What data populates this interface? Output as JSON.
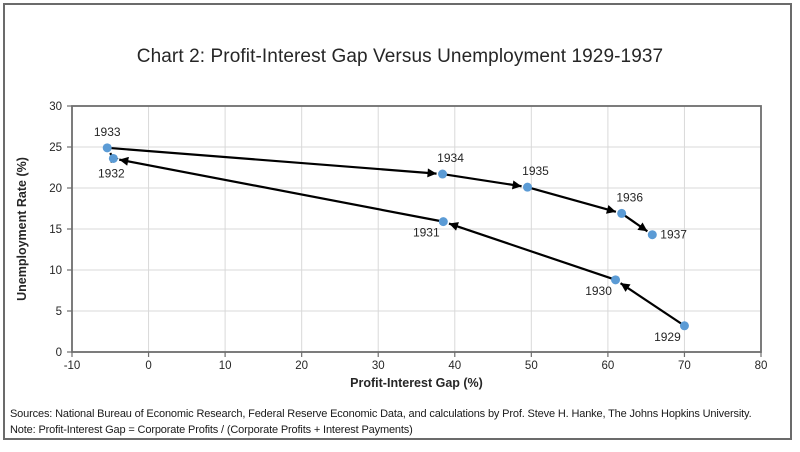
{
  "chart_data": {
    "type": "scatter",
    "title": "Chart 2: Profit-Interest Gap Versus Unemployment 1929-1937",
    "xlabel": "Profit-Interest Gap (%)",
    "ylabel": "Unemployment Rate (%)",
    "xlim": [
      -10,
      80
    ],
    "ylim": [
      0,
      30
    ],
    "x_ticks": [
      -10,
      0,
      10,
      20,
      30,
      40,
      50,
      60,
      70,
      80
    ],
    "y_ticks": [
      0,
      5,
      10,
      15,
      20,
      25,
      30
    ],
    "grid": true,
    "legend": "none",
    "line_connects_points_chronologically_with_arrowheads": true,
    "points": [
      {
        "year": "1929",
        "x": 70,
        "y": 3.2,
        "label_pos": "below-left"
      },
      {
        "year": "1930",
        "x": 61,
        "y": 8.8,
        "label_pos": "below-left"
      },
      {
        "year": "1931",
        "x": 38.5,
        "y": 15.9,
        "label_pos": "below-left"
      },
      {
        "year": "1932",
        "x": -4.6,
        "y": 23.6,
        "label_pos": "below"
      },
      {
        "year": "1933",
        "x": -5.4,
        "y": 24.9,
        "label_pos": "above"
      },
      {
        "year": "1934",
        "x": 38.4,
        "y": 21.7,
        "label_pos": "above-right"
      },
      {
        "year": "1935",
        "x": 49.5,
        "y": 20.1,
        "label_pos": "above-right"
      },
      {
        "year": "1936",
        "x": 61.8,
        "y": 16.9,
        "label_pos": "above-right"
      },
      {
        "year": "1937",
        "x": 65.8,
        "y": 14.3,
        "label_pos": "right"
      }
    ],
    "colors": {
      "point_fill": "#5B9BD5",
      "line": "#000000",
      "gridline": "#d9d9d9",
      "plot_border": "#6e6e6e",
      "tick": "#6e6e6e",
      "tick_label": "#262626",
      "year_label": "#262626"
    }
  },
  "footer": {
    "sources": "Sources: National Bureau of Economic Research, Federal Reserve Economic Data, and calculations by Prof. Steve H. Hanke, The Johns Hopkins University.",
    "note": "Note: Profit-Interest Gap = Corporate Profits / (Corporate Profits + Interest Payments)"
  }
}
